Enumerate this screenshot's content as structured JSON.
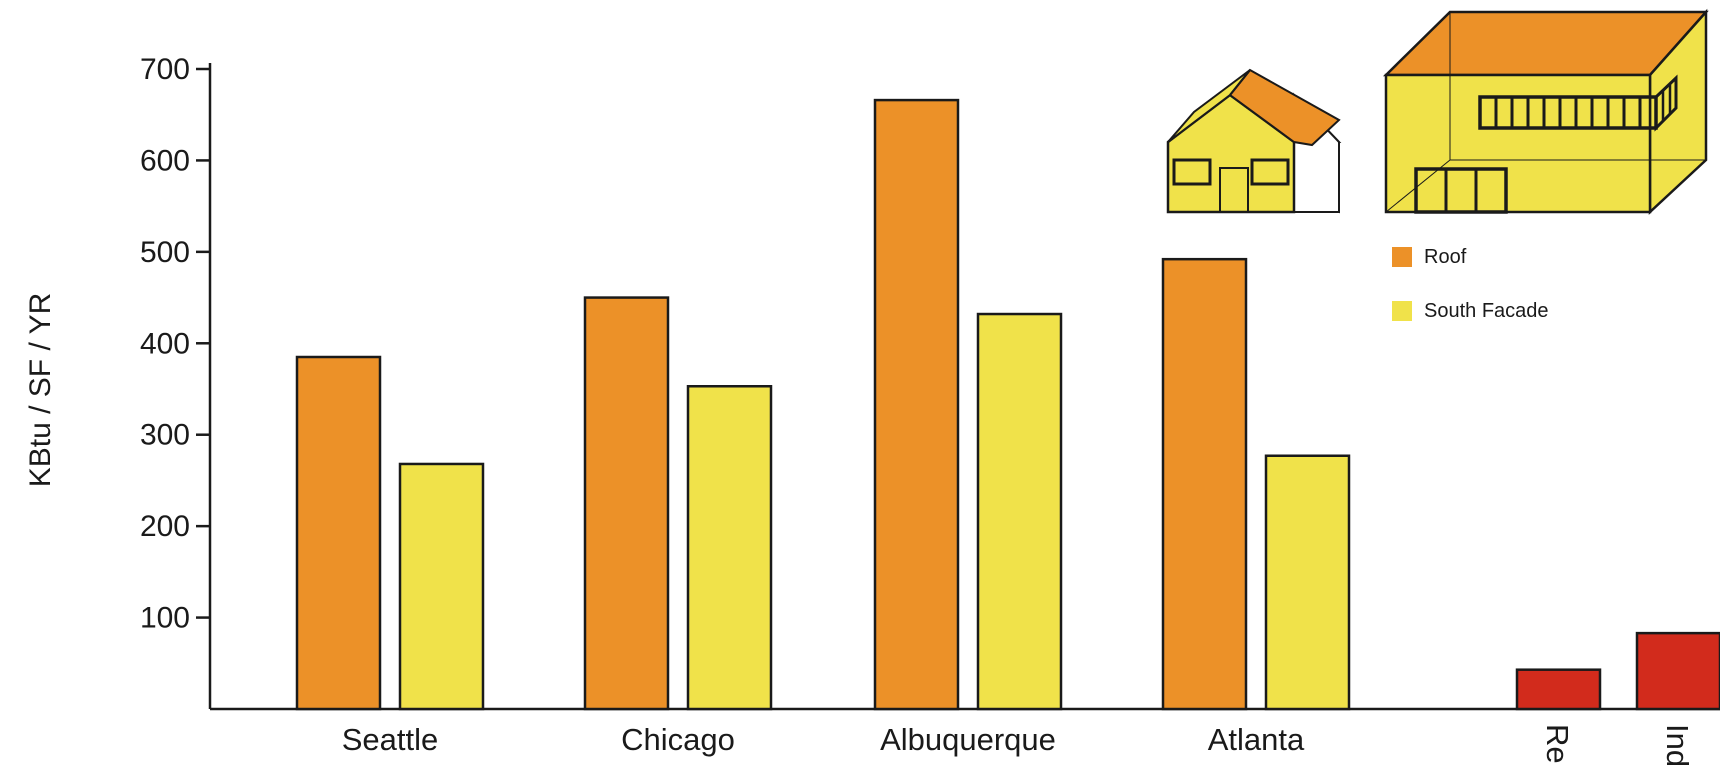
{
  "chart_data": {
    "type": "bar",
    "ylabel": "KBtu / SF / YR",
    "xlabel": "",
    "ylim": [
      0,
      700
    ],
    "yticks": [
      100,
      200,
      300,
      400,
      500,
      600,
      700
    ],
    "categories": [
      "Seattle",
      "Chicago",
      "Albuquerque",
      "Atlanta"
    ],
    "series": [
      {
        "name": "Roof",
        "color": "#EC9128",
        "values": [
          385,
          450,
          666,
          492
        ]
      },
      {
        "name": "South Facade",
        "color": "#F0E24A",
        "values": [
          268,
          353,
          432,
          277
        ]
      }
    ],
    "extra_bars": [
      {
        "label": "Re",
        "value": 43,
        "color": "#D22B1C"
      },
      {
        "label": "Ind",
        "value": 83,
        "color": "#D22B1C"
      }
    ],
    "legend_position": "top-right",
    "grid": false
  },
  "illustrations": [
    {
      "name": "house",
      "wall_color": "#F0E24A",
      "roof_color": "#EC9128"
    },
    {
      "name": "warehouse",
      "wall_color": "#F0E24A",
      "roof_color": "#EC9128"
    }
  ]
}
